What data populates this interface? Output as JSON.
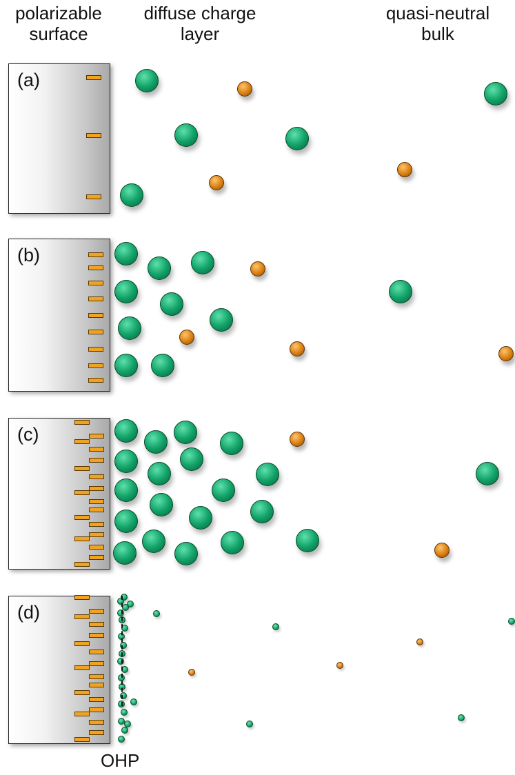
{
  "headers": {
    "surface": "polarizable\nsurface",
    "diffuse": "diffuse charge\nlayer",
    "bulk": "quasi-neutral\nbulk"
  },
  "panels": [
    {
      "label": "(a)"
    },
    {
      "label": "(b)"
    },
    {
      "label": "(c)"
    },
    {
      "label": "(d)"
    }
  ],
  "ohp_label": "OHP",
  "colors": {
    "surface_charge": "#f0a323",
    "anion": "#13a46a",
    "cation": "#d97f12",
    "electrode_edge": "#222222"
  }
}
